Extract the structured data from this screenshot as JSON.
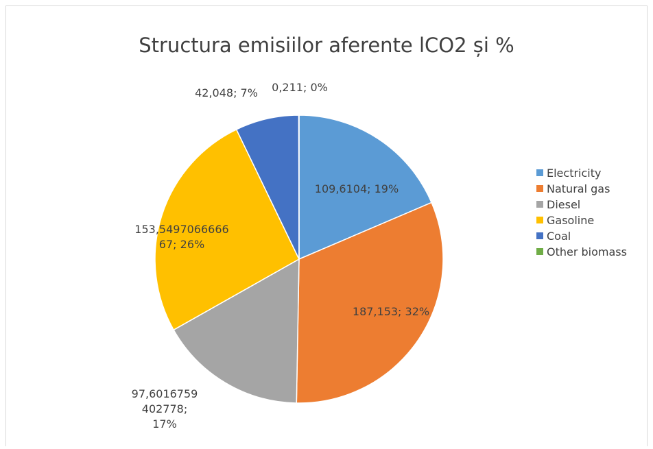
{
  "chart_data": {
    "type": "pie",
    "title": "Structura emisiilor aferente lCO2 și %",
    "categories": [
      "Electricity",
      "Natural gas",
      "Diesel",
      "Gasoline",
      "Coal",
      "Other biomass"
    ],
    "values": [
      109.6104,
      187.153,
      97.6016759402778,
      153.549706666667,
      42.048,
      0.211
    ],
    "value_labels": [
      "109,6104; 19%",
      "187,153; 32%",
      "97,6016759402778; 17%",
      "153,549706666667; 26%",
      "42,048; 7%",
      "0,211; 0%"
    ],
    "colors": [
      "#5b9bd5",
      "#ed7d31",
      "#a5a5a5",
      "#ffc000",
      "#4472c4",
      "#70ad47"
    ],
    "legend": "right"
  }
}
